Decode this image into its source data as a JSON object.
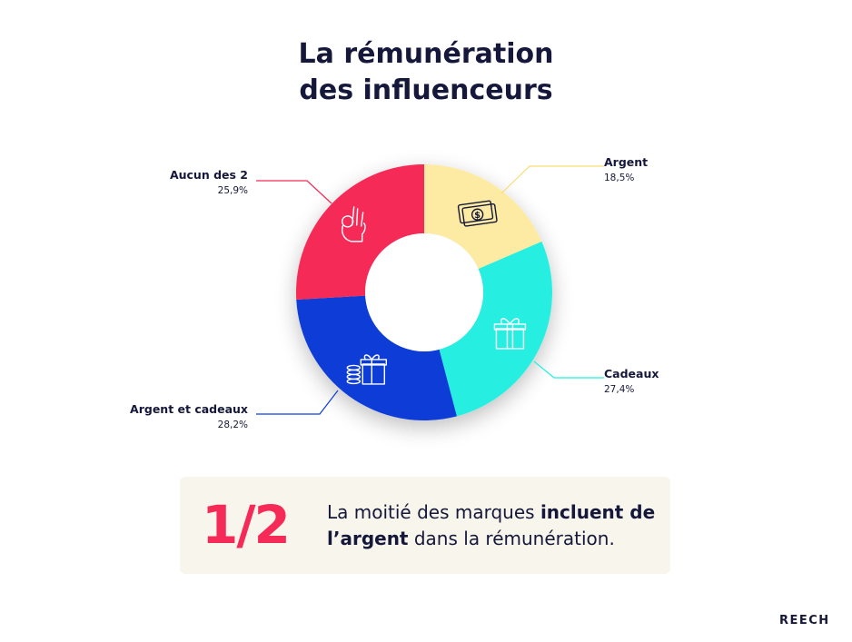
{
  "title": {
    "line1": "La rémunération",
    "line2": "des influenceurs"
  },
  "chart_data": {
    "type": "pie",
    "variant": "donut",
    "title": "La rémunération des influenceurs",
    "slices": [
      {
        "name": "Argent",
        "value": 18.5,
        "label": "18,5%",
        "color": "#fdeba4",
        "leader_color": "#f7dd75",
        "icon": "banknote-icon"
      },
      {
        "name": "Cadeaux",
        "value": 27.4,
        "label": "27,4%",
        "color": "#25efe2",
        "leader_color": "#25efe2",
        "icon": "gift-icon"
      },
      {
        "name": "Argent et cadeaux",
        "value": 28.2,
        "label": "28,2%",
        "color": "#0d3ed6",
        "leader_color": "#0d3ed6",
        "icon": "coins-and-gift-icon"
      },
      {
        "name": "Aucun des 2",
        "value": 25.9,
        "label": "25,9%",
        "color": "#f62957",
        "leader_color": "#f62957",
        "icon": "ok-hand-icon"
      }
    ]
  },
  "callout": {
    "fraction": "1/2",
    "text_part1": "La moitié des marques ",
    "text_bold": "incluent de l’argent",
    "text_part2": " dans la rémunération."
  },
  "brand": "REECH"
}
